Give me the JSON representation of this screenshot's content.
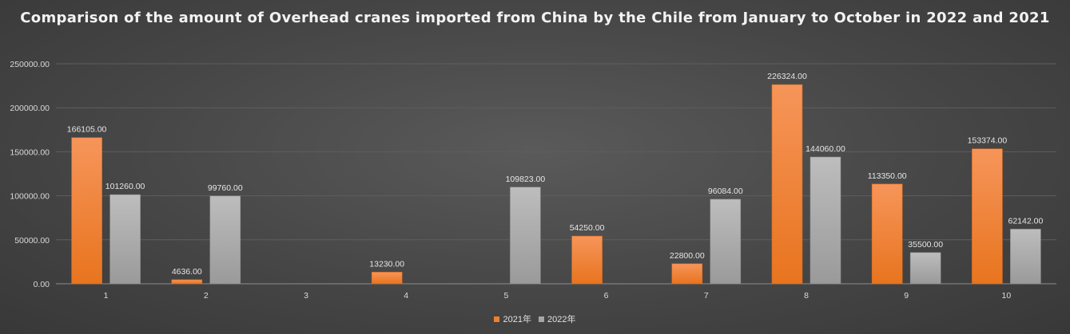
{
  "chart_data": {
    "type": "bar",
    "title": "Comparison of the amount of Overhead cranes imported from China by the Chile from January to October in 2022 and 2021",
    "categories": [
      "1",
      "2",
      "3",
      "4",
      "5",
      "6",
      "7",
      "8",
      "9",
      "10"
    ],
    "series": [
      {
        "name": "2021年",
        "color": "#f07f2f",
        "values": [
          166105,
          4636,
          null,
          13230,
          null,
          54250,
          22800,
          226324,
          113350,
          153374
        ],
        "labels": [
          "166105.00",
          "4636.00",
          "",
          "13230.00",
          "",
          "54250.00",
          "22800.00",
          "226324.00",
          "113350.00",
          "153374.00"
        ]
      },
      {
        "name": "2022年",
        "color": "#a6a6a6",
        "values": [
          101260,
          99760,
          null,
          null,
          109823,
          null,
          96084,
          144060,
          35500,
          62142
        ],
        "labels": [
          "101260.00",
          "99760.00",
          "",
          "",
          "109823.00",
          "",
          "96084.00",
          "144060.00",
          "35500.00",
          "62142.00"
        ]
      }
    ],
    "yticks": [
      "0.00",
      "50000.00",
      "100000.00",
      "150000.00",
      "200000.00",
      "250000.00"
    ],
    "ylim": [
      0,
      250000
    ],
    "grid": true,
    "legend_position": "bottom",
    "xlabel": "",
    "ylabel": ""
  }
}
